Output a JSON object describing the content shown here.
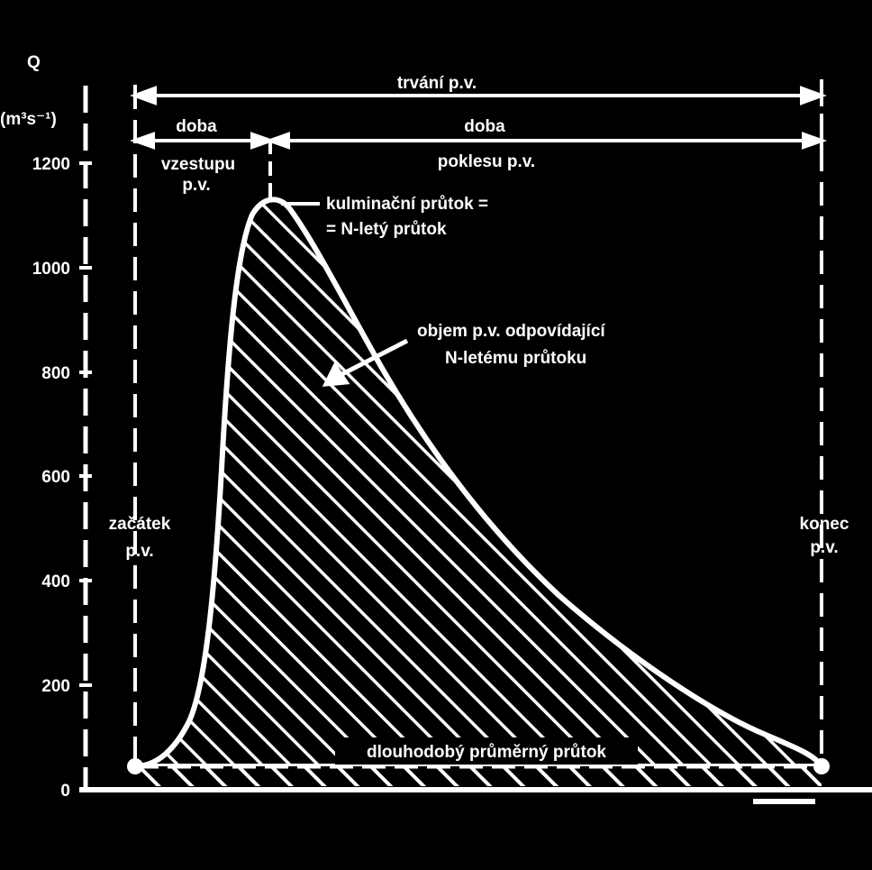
{
  "colors": {
    "background": "#000000",
    "foreground": "#ffffff"
  },
  "axis": {
    "y_symbol": "Q",
    "y_unit": "(m³s⁻¹)",
    "y_ticks": [
      "0",
      "200",
      "400",
      "600",
      "800",
      "1000",
      "1200"
    ]
  },
  "labels": {
    "trvani": "trvání p.v.",
    "doba_vzestupu_1": "doba",
    "doba_vzestupu_2": "vzestupu",
    "doba_vzestupu_3": "p.v.",
    "doba_poklesu_1": "doba",
    "doba_poklesu_2": "poklesu p.v.",
    "kulminacni_1": "kulminační průtok =",
    "kulminacni_2": "= N-letý průtok",
    "objem_1": "objem p.v. odpovídající",
    "objem_2": "N-letému průtoku",
    "zacatek_1": "začátek",
    "zacatek_2": "p.v.",
    "konec_1": "konec",
    "konec_2": "p.v.",
    "prumerny": "dlouhodobý průměrný průtok"
  },
  "chart_data": {
    "type": "area",
    "ylabel": "Q (m³s⁻¹)",
    "ylim": [
      0,
      1200
    ],
    "y_ticks": [
      0,
      200,
      400,
      600,
      800,
      1000,
      1200
    ],
    "peak_flow": 1130,
    "long_term_mean_flow": 45
  }
}
